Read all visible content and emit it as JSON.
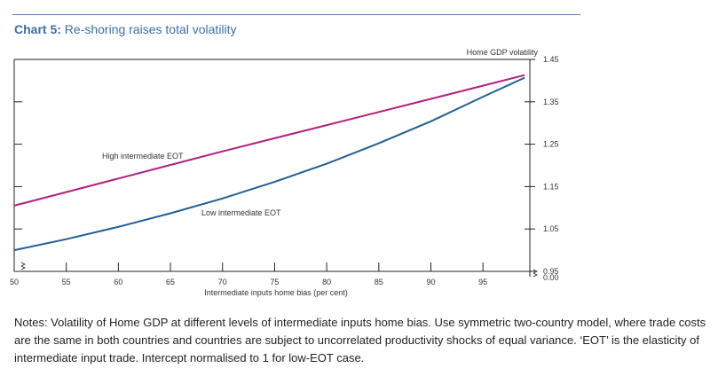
{
  "title": {
    "prefix": "Chart 5:",
    "text": "Re-shoring raises total volatility"
  },
  "notes": "Notes: Volatility of Home GDP at different levels of intermediate inputs home bias. Use symmetric two-country model, where trade costs are the same in both countries and countries are subject to uncorrelated productivity shocks of equal variance. ‘EOT’ is the elasticity of intermediate input trade. Intercept normalised to 1 for low-EOT case.",
  "colors": {
    "high_eot": "#b0207f",
    "low_eot": "#1f5f96",
    "axis": "#222222",
    "title": "#3b6fa8"
  },
  "chart_data": {
    "type": "line",
    "xlabel": "Intermediate inputs home bias (per cent)",
    "ylabel": "Home GDP volatility",
    "xlim": [
      50,
      99.5
    ],
    "ylim": [
      0.95,
      1.45
    ],
    "x_ticks": [
      "50",
      "55",
      "60",
      "65",
      "70",
      "75",
      "80",
      "85",
      "90",
      "95"
    ],
    "y_ticks": [
      "1.45",
      "1.35",
      "1.25",
      "1.15",
      "1.05",
      "0.95"
    ],
    "y_zero_label": "0.00",
    "axis_break": true,
    "grid": false,
    "series": [
      {
        "name": "High intermediate EOT",
        "x": [
          50,
          55,
          60,
          65,
          70,
          75,
          80,
          85,
          90,
          95,
          99
        ],
        "values": [
          1.105,
          1.137,
          1.169,
          1.201,
          1.233,
          1.264,
          1.295,
          1.326,
          1.357,
          1.388,
          1.413
        ]
      },
      {
        "name": "Low intermediate EOT",
        "x": [
          50,
          55,
          60,
          65,
          70,
          75,
          80,
          85,
          90,
          95,
          99
        ],
        "values": [
          1.0,
          1.026,
          1.055,
          1.087,
          1.122,
          1.161,
          1.204,
          1.252,
          1.304,
          1.362,
          1.407
        ]
      }
    ]
  }
}
